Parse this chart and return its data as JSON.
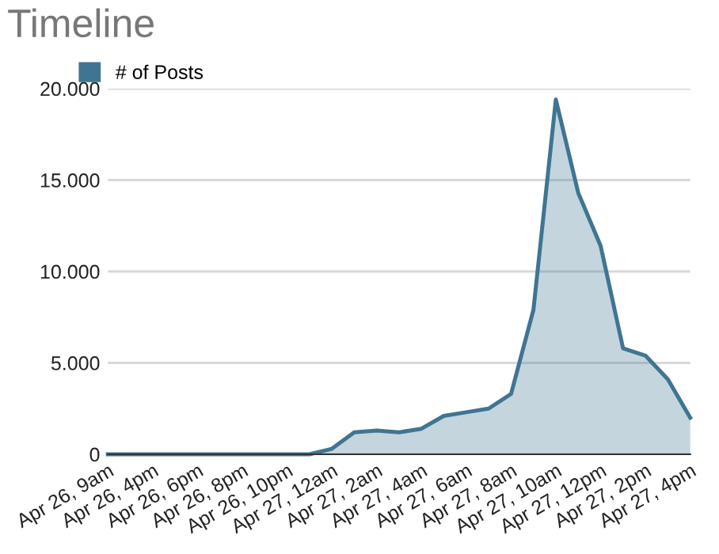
{
  "chart_data": {
    "type": "area",
    "title": "Timeline",
    "categories": [
      "Apr 26, 9am",
      null,
      "Apr 26, 4pm",
      null,
      "Apr 26, 6pm",
      null,
      "Apr 26, 8pm",
      null,
      "Apr 26, 10pm",
      null,
      "Apr 27, 12am",
      null,
      "Apr 27, 2am",
      null,
      "Apr 27, 4am",
      null,
      "Apr 27, 6am",
      null,
      "Apr 27, 8am",
      null,
      "Apr 27, 10am",
      null,
      "Apr 27, 12pm",
      null,
      "Apr 27, 2pm",
      null,
      "Apr 27, 4pm"
    ],
    "series": [
      {
        "name": "# of Posts",
        "color": "#3f7592",
        "values": [
          0,
          0,
          0,
          0,
          0,
          0,
          0,
          0,
          0,
          0,
          300,
          1200,
          1300,
          1200,
          1400,
          2100,
          2300,
          2500,
          3300,
          7900,
          19400,
          14300,
          11400,
          5800,
          5400,
          4100,
          2000
        ]
      }
    ],
    "ylim": [
      0,
      20000
    ],
    "yticks": [
      0,
      {
        "value": 5000,
        "label": "5.000"
      },
      {
        "value": 10000,
        "label": "10.000"
      },
      {
        "value": 15000,
        "label": "15.000"
      },
      {
        "value": 20000,
        "label": "20.000"
      }
    ],
    "grid": "y",
    "legend": "top left"
  }
}
